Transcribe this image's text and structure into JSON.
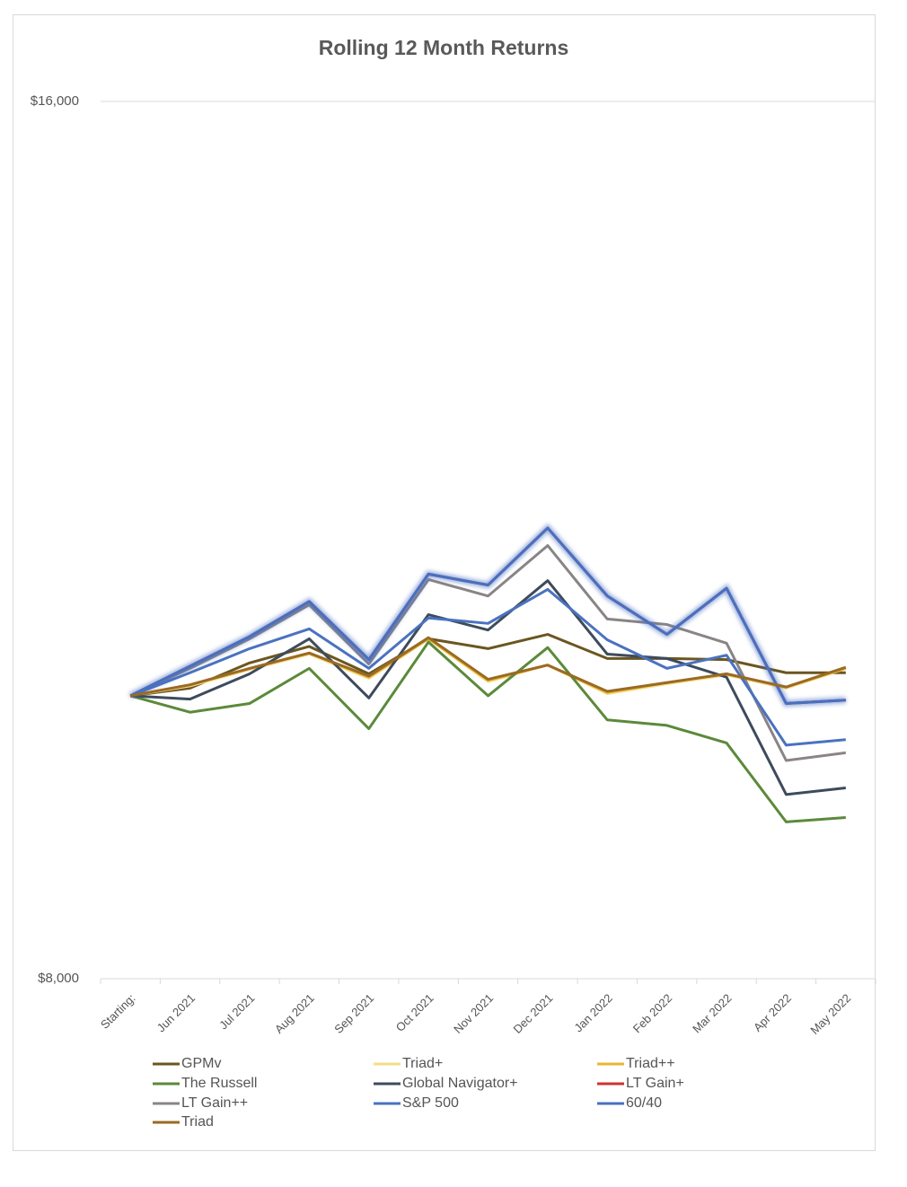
{
  "chart_data": {
    "type": "line",
    "title": "Rolling 12 Month Returns",
    "categories": [
      "Starting:",
      "Jun 2021",
      "Jul 2021",
      "Aug 2021",
      "Sep 2021",
      "Oct 2021",
      "Nov 2021",
      "Dec 2021",
      "Jan 2022",
      "Feb 2022",
      "Mar 2022",
      "Apr 2022",
      "May 2022"
    ],
    "ylim": [
      8000,
      16000
    ],
    "yticks": [
      {
        "value": 8000,
        "label": "$8,000"
      },
      {
        "value": 16000,
        "label": "$16,000"
      }
    ],
    "grid": true,
    "legend": "bottom",
    "series": [
      {
        "name": "GPMv",
        "color": "#6b5620",
        "values": [
          10580,
          10650,
          10880,
          11030,
          10780,
          11100,
          11010,
          11140,
          10920,
          10920,
          10910,
          10790,
          10790
        ]
      },
      {
        "name": "Triad+",
        "color": "#f5dc85",
        "values": [
          10580,
          10670,
          10820,
          10960,
          10740,
          11100,
          10710,
          10860,
          10600,
          10690,
          10770,
          10650,
          10830
        ]
      },
      {
        "name": "Triad++",
        "color": "#e8b630",
        "values": [
          10580,
          10680,
          10830,
          10970,
          10750,
          11100,
          10720,
          10860,
          10610,
          10700,
          10780,
          10660,
          10830
        ]
      },
      {
        "name": "The Russell",
        "color": "#5b8a3a",
        "values": [
          10580,
          10430,
          10510,
          10830,
          10280,
          11070,
          10580,
          11020,
          10360,
          10310,
          10150,
          9430,
          9470
        ]
      },
      {
        "name": "Global Navigator+",
        "color": "#3d4b5c",
        "values": [
          10580,
          10550,
          10780,
          11100,
          10560,
          11320,
          11180,
          11630,
          10960,
          10920,
          10750,
          9680,
          9740
        ]
      },
      {
        "name": "LT Gain+",
        "color": "#d32f2f",
        "values": [
          10580,
          10850,
          11120,
          11440,
          10910,
          11690,
          11590,
          12110,
          11490,
          11140,
          11560,
          10510,
          10540
        ]
      },
      {
        "name": "LT Gain++",
        "color": "#8a8486",
        "values": [
          10580,
          10830,
          11100,
          11410,
          10870,
          11640,
          11490,
          11950,
          11280,
          11230,
          11060,
          9990,
          10060
        ]
      },
      {
        "name": "S&P 500",
        "color": "#4a72c0",
        "values": [
          10580,
          10790,
          11010,
          11190,
          10830,
          11290,
          11240,
          11550,
          11090,
          10830,
          10950,
          10130,
          10180
        ]
      },
      {
        "name": "60/40",
        "color": "#4a6fc0",
        "glow": true,
        "values": [
          10580,
          10850,
          11120,
          11440,
          10910,
          11690,
          11590,
          12110,
          11490,
          11140,
          11560,
          10510,
          10540
        ]
      },
      {
        "name": "Triad",
        "color": "#9a6a24",
        "values": [
          10580,
          10680,
          10830,
          10970,
          10760,
          11110,
          10730,
          10860,
          10620,
          10700,
          10780,
          10660,
          10840
        ]
      }
    ]
  }
}
